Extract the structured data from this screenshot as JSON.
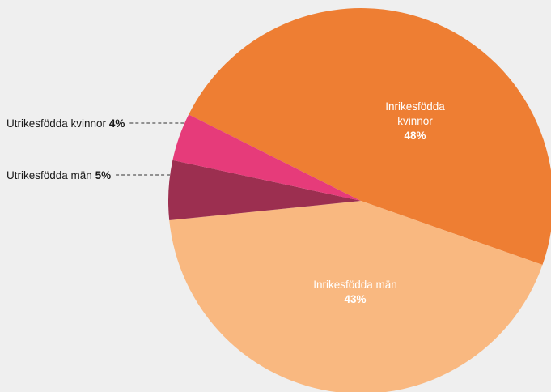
{
  "chart_data": {
    "type": "pie",
    "title": "",
    "slices": [
      {
        "key": "inrikes-kvinnor",
        "label": "Inrikesfödda kvinnor",
        "value": 48,
        "value_label": "48%",
        "color": "#ee7e33",
        "label_placement": "inside"
      },
      {
        "key": "inrikes-man",
        "label": "Inrikesfödda män",
        "value": 43,
        "value_label": "43%",
        "color": "#f9b880",
        "label_placement": "inside"
      },
      {
        "key": "utrikes-man",
        "label": "Utrikesfödda män",
        "value": 5,
        "value_label": "5%",
        "color": "#9c2f50",
        "label_placement": "outside"
      },
      {
        "key": "utrikes-kvinnor",
        "label": "Utrikesfödda kvinnor",
        "value": 4,
        "value_label": "4%",
        "color": "#e63b7a",
        "label_placement": "outside"
      }
    ],
    "legend": "none"
  }
}
